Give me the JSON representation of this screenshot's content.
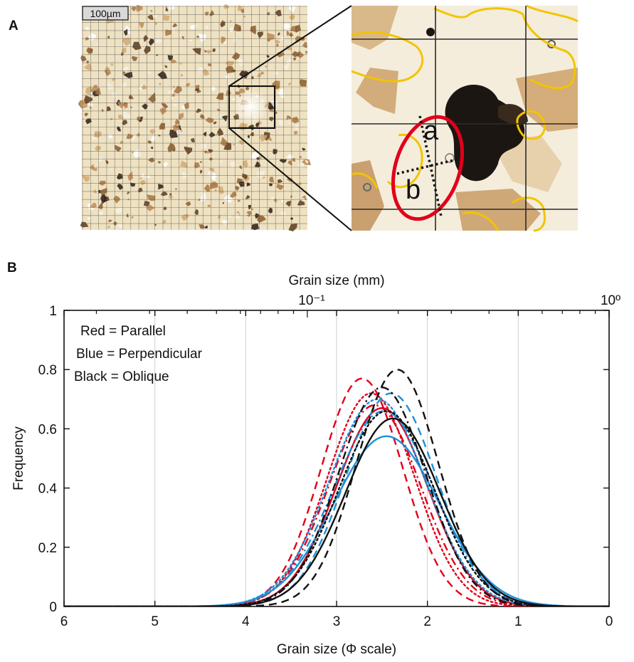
{
  "panel_a": {
    "label": "A",
    "scale_bar": "100µm",
    "axis_label_a": "a",
    "axis_label_b": "b"
  },
  "panel_b": {
    "label": "B",
    "legend": [
      {
        "text": "Red = Parallel",
        "color": "#e1001a"
      },
      {
        "text": "Blue = Perpendicular",
        "color": "#1f8fd6"
      },
      {
        "text": "Black = Oblique",
        "color": "#111111"
      }
    ],
    "top_axis_ticks": [
      "10⁻¹",
      "10º"
    ]
  },
  "colors": {
    "red": "#e1001a",
    "blue": "#1f8fd6",
    "black": "#111111",
    "grain_outline": "#f2c400"
  },
  "chart_data": {
    "type": "line",
    "xlabel": "Grain size (Φ scale)",
    "x2label": "Grain size (mm)",
    "ylabel": "Frequency",
    "xlim": [
      6,
      0
    ],
    "ylim": [
      0,
      1
    ],
    "x_reversed": true,
    "xticks": [
      "6",
      "5",
      "4",
      "3",
      "2",
      "1",
      "0"
    ],
    "yticks": [
      "0",
      "0.2",
      "0.4",
      "0.6",
      "0.8",
      "1"
    ],
    "grid": "vertical",
    "legend_position": "top-left",
    "series": [
      {
        "color": "#e1001a",
        "style": "solid",
        "mu": 2.5,
        "sigma": 0.5,
        "peak": 0.67
      },
      {
        "color": "#e1001a",
        "style": "dashed",
        "mu": 2.72,
        "sigma": 0.45,
        "peak": 0.77
      },
      {
        "color": "#e1001a",
        "style": "dotted",
        "mu": 2.62,
        "sigma": 0.48,
        "peak": 0.72
      },
      {
        "color": "#e1001a",
        "style": "dashdot",
        "mu": 2.58,
        "sigma": 0.5,
        "peak": 0.68
      },
      {
        "color": "#1f8fd6",
        "style": "solid",
        "mu": 2.45,
        "sigma": 0.58,
        "peak": 0.575
      },
      {
        "color": "#1f8fd6",
        "style": "dashed",
        "mu": 2.4,
        "sigma": 0.5,
        "peak": 0.72
      },
      {
        "color": "#1f8fd6",
        "style": "dotted",
        "mu": 2.55,
        "sigma": 0.53,
        "peak": 0.7
      },
      {
        "color": "#1f8fd6",
        "style": "dashdot",
        "mu": 2.48,
        "sigma": 0.55,
        "peak": 0.66
      },
      {
        "color": "#111111",
        "style": "solid",
        "mu": 2.38,
        "sigma": 0.52,
        "peak": 0.635
      },
      {
        "color": "#111111",
        "style": "dashed",
        "mu": 2.33,
        "sigma": 0.45,
        "peak": 0.8
      },
      {
        "color": "#111111",
        "style": "dotted",
        "mu": 2.45,
        "sigma": 0.52,
        "peak": 0.66
      },
      {
        "color": "#111111",
        "style": "dashdot",
        "mu": 2.5,
        "sigma": 0.48,
        "peak": 0.74
      }
    ]
  }
}
